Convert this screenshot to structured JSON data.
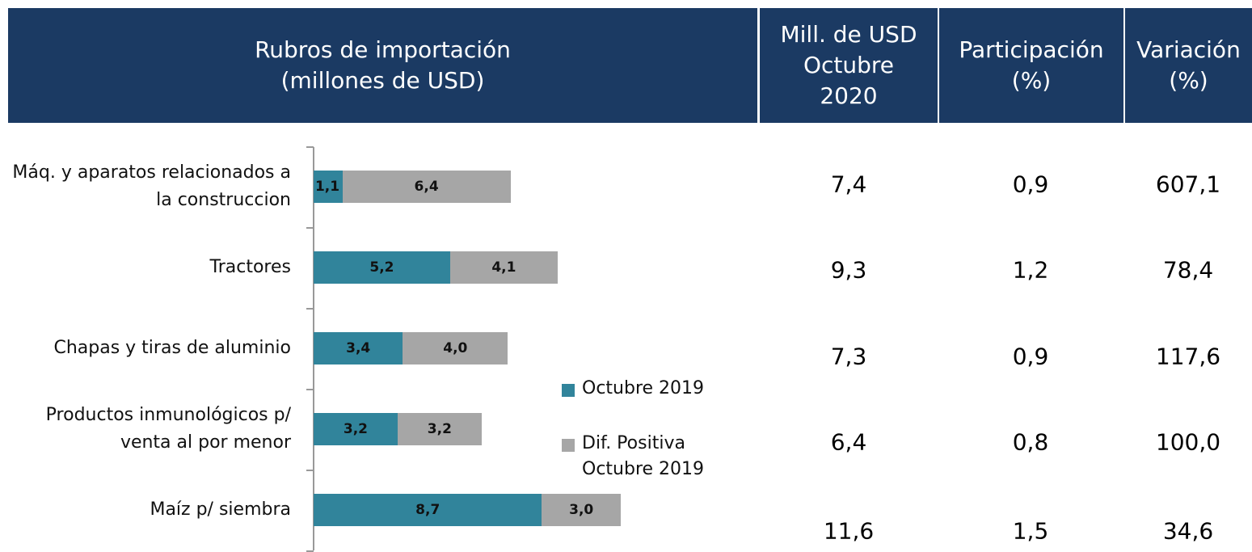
{
  "table": {
    "headers": [
      [
        "Rubros de importación",
        "(millones de USD)"
      ],
      [
        "Mill. de USD",
        "Octubre",
        "2020"
      ],
      [
        "Participación",
        "(%)"
      ],
      [
        "Variación",
        "(%)"
      ]
    ],
    "rows": [
      [
        "7,4",
        "0,9",
        "607,1"
      ],
      [
        "9,3",
        "1,2",
        "78,4"
      ],
      [
        "7,3",
        "0,9",
        "117,6"
      ],
      [
        "6,4",
        "0,8",
        "100,0"
      ],
      [
        "11,6",
        "1,5",
        "34,6"
      ]
    ]
  },
  "chart_data": {
    "type": "bar",
    "orientation": "horizontal",
    "stacked": true,
    "categories": [
      "Máq. y aparatos relacionados a la construccion",
      "Tractores",
      "Chapas y tiras de aluminio",
      "Productos inmunológicos p/ venta al por menor",
      "Maíz p/ siembra"
    ],
    "series": [
      {
        "name": "Octubre 2019",
        "color": "#31849b",
        "values": [
          1.1,
          5.2,
          3.4,
          3.2,
          8.7
        ],
        "value_labels": [
          "1,1",
          "5,2",
          "3,4",
          "3,2",
          "8,7"
        ]
      },
      {
        "name": "Dif. Positiva Octubre 2019",
        "color": "#a6a6a6",
        "values": [
          6.4,
          4.1,
          4.0,
          3.2,
          3.0
        ],
        "value_labels": [
          "6,4",
          "4,1",
          "4,0",
          "3,2",
          "3,0"
        ]
      }
    ],
    "xlim": [
      0,
      17
    ]
  }
}
